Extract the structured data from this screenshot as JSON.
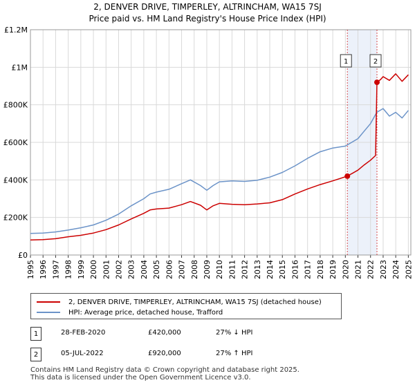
{
  "chart_data": {
    "type": "line",
    "title": "2, DENVER DRIVE, TIMPERLEY, ALTRINCHAM, WA15 7SJ",
    "subtitle": "Price paid vs. HM Land Registry's House Price Index (HPI)",
    "xlabel": "",
    "ylabel": "",
    "xlim": [
      1995,
      2025.2
    ],
    "ylim": [
      0,
      1200000
    ],
    "y_ticks": [
      {
        "value": 0,
        "label": "£0"
      },
      {
        "value": 200000,
        "label": "£200K"
      },
      {
        "value": 400000,
        "label": "£400K"
      },
      {
        "value": 600000,
        "label": "£600K"
      },
      {
        "value": 800000,
        "label": "£800K"
      },
      {
        "value": 1000000,
        "label": "£1M"
      },
      {
        "value": 1200000,
        "label": "£1.2M"
      }
    ],
    "x_ticks": [
      "1995",
      "1996",
      "1997",
      "1998",
      "1999",
      "2000",
      "2001",
      "2002",
      "2003",
      "2004",
      "2005",
      "2006",
      "2007",
      "2008",
      "2009",
      "2010",
      "2011",
      "2012",
      "2013",
      "2014",
      "2015",
      "2016",
      "2017",
      "2018",
      "2019",
      "2020",
      "2021",
      "2022",
      "2023",
      "2024",
      "2025"
    ],
    "grid": true,
    "shaded_region": {
      "from": 2020.16,
      "to": 2022.51,
      "color": "#dde6f5"
    },
    "series": [
      {
        "name": "2, DENVER DRIVE, TIMPERLEY, ALTRINCHAM, WA15 7SJ (detached house)",
        "color": "#cc0000",
        "x": [
          1995,
          1996,
          1997,
          1998,
          1999,
          2000,
          2001,
          2002,
          2003,
          2004,
          2004.5,
          2005,
          2006,
          2007,
          2007.7,
          2008.5,
          2009,
          2009.5,
          2010,
          2011,
          2012,
          2013,
          2014,
          2015,
          2016,
          2017,
          2018,
          2019,
          2020.16,
          2021,
          2021.5,
          2022,
          2022.4,
          2022.51,
          2022.8,
          2023,
          2023.5,
          2024,
          2024.5,
          2025
        ],
        "y": [
          80000,
          82000,
          87000,
          97000,
          105000,
          117000,
          135000,
          160000,
          192000,
          222000,
          240000,
          245000,
          250000,
          268000,
          285000,
          265000,
          240000,
          262000,
          275000,
          270000,
          268000,
          272000,
          278000,
          295000,
          325000,
          352000,
          375000,
          395000,
          420000,
          452000,
          480000,
          505000,
          530000,
          920000,
          935000,
          950000,
          930000,
          965000,
          925000,
          960000
        ]
      },
      {
        "name": "HPI: Average price, detached house, Trafford",
        "color": "#6b93c8",
        "x": [
          1995,
          1996,
          1997,
          1998,
          1999,
          2000,
          2001,
          2002,
          2003,
          2004,
          2004.5,
          2005,
          2006,
          2007,
          2007.7,
          2008.5,
          2009,
          2009.5,
          2010,
          2011,
          2012,
          2013,
          2014,
          2015,
          2016,
          2017,
          2018,
          2019,
          2020,
          2021,
          2021.5,
          2022,
          2022.5,
          2023,
          2023.5,
          2024,
          2024.5,
          2025
        ],
        "y": [
          115000,
          117000,
          123000,
          133000,
          145000,
          160000,
          185000,
          218000,
          262000,
          300000,
          325000,
          335000,
          350000,
          380000,
          400000,
          370000,
          345000,
          370000,
          390000,
          395000,
          392000,
          398000,
          415000,
          440000,
          475000,
          515000,
          550000,
          570000,
          580000,
          620000,
          660000,
          700000,
          760000,
          780000,
          740000,
          760000,
          730000,
          770000
        ]
      }
    ],
    "sales": [
      {
        "id": "1",
        "x": 2020.16,
        "y": 420000
      },
      {
        "id": "2",
        "x": 2022.51,
        "y": 920000
      }
    ]
  },
  "legend": {
    "property_label": "2, DENVER DRIVE, TIMPERLEY, ALTRINCHAM, WA15 7SJ (detached house)",
    "hpi_label": "HPI: Average price, detached house, Trafford",
    "property_color": "#cc0000",
    "hpi_color": "#6b93c8"
  },
  "sales_table": [
    {
      "badge": "1",
      "date": "28-FEB-2020",
      "price": "£420,000",
      "hpi": "27% ↓ HPI"
    },
    {
      "badge": "2",
      "date": "05-JUL-2022",
      "price": "£920,000",
      "hpi": "27% ↑ HPI"
    }
  ],
  "footer": {
    "line1": "Contains HM Land Registry data © Crown copyright and database right 2025.",
    "line2": "This data is licensed under the Open Government Licence v3.0."
  }
}
